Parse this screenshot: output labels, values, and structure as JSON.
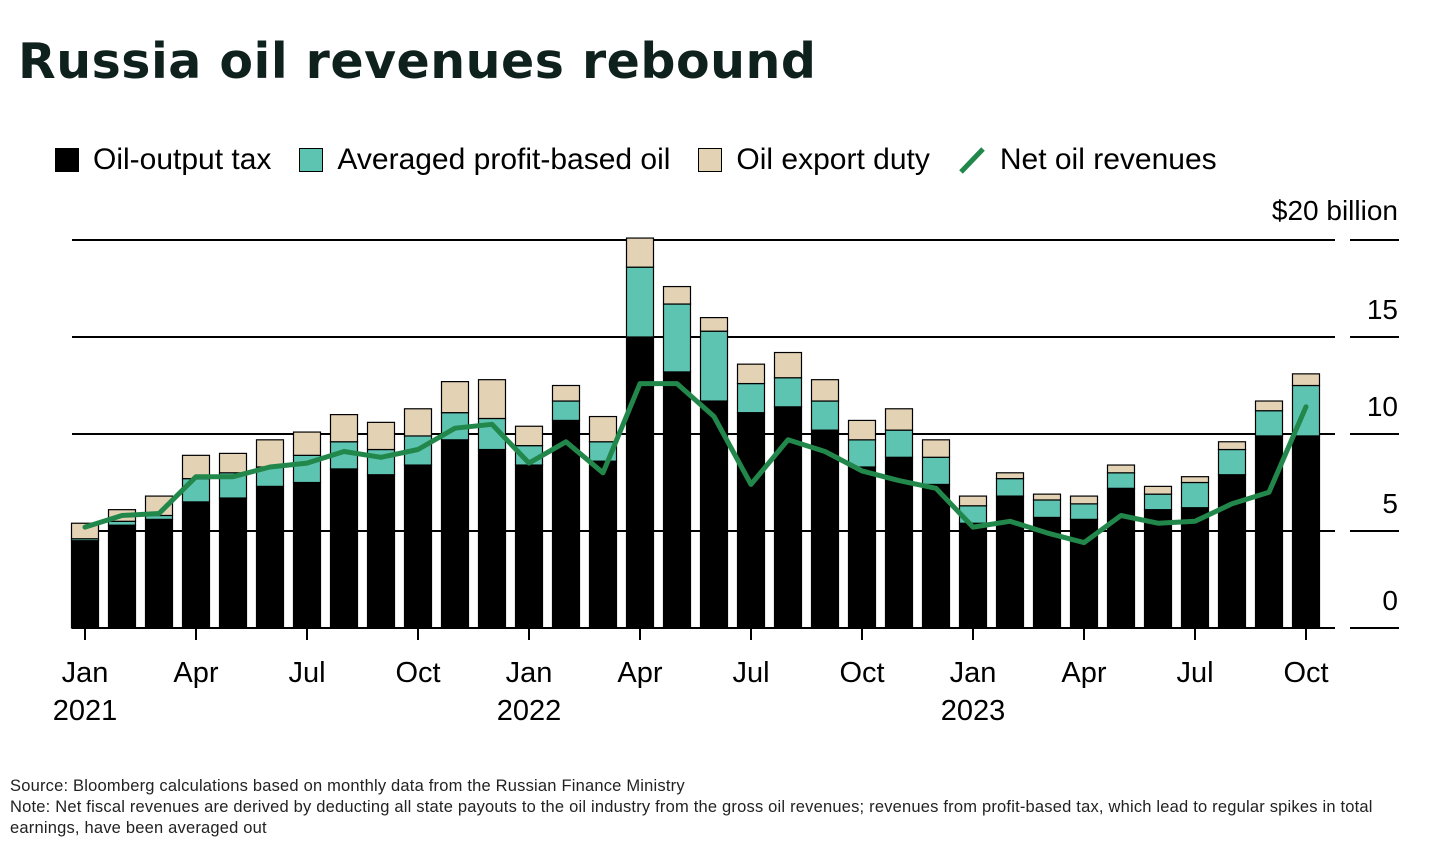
{
  "title": "Russia oil revenues rebound",
  "legend": [
    {
      "label": "Oil-output tax",
      "color": "#000000",
      "kind": "box"
    },
    {
      "label": "Averaged profit-based oil",
      "color": "#5ec4b2",
      "kind": "box"
    },
    {
      "label": "Oil export duty",
      "color": "#e3d2b4",
      "kind": "box"
    },
    {
      "label": "Net oil revenues",
      "color": "#22874a",
      "kind": "line"
    }
  ],
  "source": "Source: Bloomberg calculations based on monthly data from the Russian Finance Ministry",
  "note": "Note: Net fiscal revenues are derived by deducting all state payouts to the oil industry from the gross oil revenues; revenues from profit-based tax, which lead to regular spikes in total earnings, have been averaged out",
  "chart_data": {
    "type": "bar",
    "stacked": true,
    "unit_label": "$20 billion",
    "ylim": [
      0,
      20
    ],
    "yticks": [
      0,
      5,
      10,
      15
    ],
    "grid": true,
    "legend_position": "top-left",
    "x_ticks": [
      {
        "index": 0,
        "label": "Jan",
        "year": "2021"
      },
      {
        "index": 3,
        "label": "Apr",
        "year": ""
      },
      {
        "index": 6,
        "label": "Jul",
        "year": ""
      },
      {
        "index": 9,
        "label": "Oct",
        "year": ""
      },
      {
        "index": 12,
        "label": "Jan",
        "year": "2022"
      },
      {
        "index": 15,
        "label": "Apr",
        "year": ""
      },
      {
        "index": 18,
        "label": "Jul",
        "year": ""
      },
      {
        "index": 21,
        "label": "Oct",
        "year": ""
      },
      {
        "index": 24,
        "label": "Jan",
        "year": "2023"
      },
      {
        "index": 27,
        "label": "Apr",
        "year": ""
      },
      {
        "index": 30,
        "label": "Jul",
        "year": ""
      },
      {
        "index": 33,
        "label": "Oct",
        "year": ""
      }
    ],
    "categories": [
      "2021-01",
      "2021-02",
      "2021-03",
      "2021-04",
      "2021-05",
      "2021-06",
      "2021-07",
      "2021-08",
      "2021-09",
      "2021-10",
      "2021-11",
      "2021-12",
      "2022-01",
      "2022-02",
      "2022-03",
      "2022-04",
      "2022-05",
      "2022-06",
      "2022-07",
      "2022-08",
      "2022-09",
      "2022-10",
      "2022-11",
      "2022-12",
      "2023-01",
      "2023-02",
      "2023-03",
      "2023-04",
      "2023-05",
      "2023-06",
      "2023-07",
      "2023-08",
      "2023-09",
      "2023-10"
    ],
    "series": [
      {
        "name": "Oil-output tax",
        "color": "#000000",
        "values": [
          4.5,
          5.3,
          5.6,
          6.5,
          6.7,
          7.3,
          7.5,
          8.2,
          7.9,
          8.4,
          9.7,
          9.2,
          8.4,
          10.7,
          8.6,
          15.0,
          13.2,
          11.7,
          11.1,
          11.4,
          10.2,
          8.3,
          8.8,
          7.4,
          5.4,
          6.8,
          5.7,
          5.6,
          7.2,
          6.1,
          6.2,
          7.9,
          9.9,
          9.9
        ]
      },
      {
        "name": "Averaged profit-based oil",
        "color": "#5ec4b2",
        "values": [
          0.1,
          0.2,
          0.2,
          1.2,
          1.3,
          1.0,
          1.4,
          1.4,
          1.3,
          1.5,
          1.4,
          1.6,
          1.0,
          1.0,
          1.0,
          3.6,
          3.5,
          3.6,
          1.5,
          1.5,
          1.5,
          1.4,
          1.4,
          1.4,
          0.9,
          0.9,
          0.9,
          0.8,
          0.8,
          0.8,
          1.3,
          1.3,
          1.3,
          2.6
        ]
      },
      {
        "name": "Oil export duty",
        "color": "#e3d2b4",
        "values": [
          0.8,
          0.6,
          1.0,
          1.2,
          1.0,
          1.4,
          1.2,
          1.4,
          1.4,
          1.4,
          1.6,
          2.0,
          1.0,
          0.8,
          1.3,
          1.5,
          0.9,
          0.7,
          1.0,
          1.3,
          1.1,
          1.0,
          1.1,
          0.9,
          0.5,
          0.3,
          0.3,
          0.4,
          0.4,
          0.4,
          0.3,
          0.4,
          0.5,
          0.6
        ]
      }
    ],
    "line": {
      "name": "Net oil revenues",
      "color": "#22874a",
      "values": [
        5.2,
        5.8,
        5.9,
        7.8,
        7.8,
        8.3,
        8.5,
        9.1,
        8.8,
        9.2,
        10.3,
        10.5,
        8.5,
        9.6,
        8.0,
        12.6,
        12.6,
        10.9,
        7.4,
        9.7,
        9.1,
        8.1,
        7.6,
        7.2,
        5.2,
        5.5,
        4.9,
        4.4,
        5.8,
        5.4,
        5.5,
        6.4,
        7.0,
        11.4
      ]
    }
  }
}
